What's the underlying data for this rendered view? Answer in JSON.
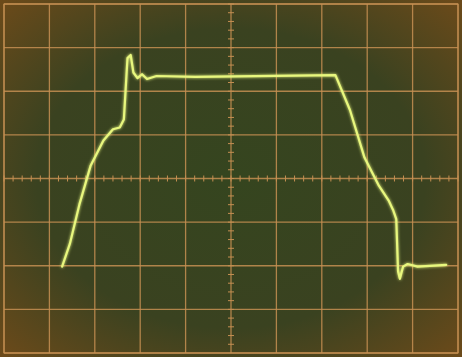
{
  "chart_data": {
    "type": "line",
    "x": [
      1.28,
      1.45,
      1.66,
      1.91,
      2.19,
      2.4,
      2.55,
      2.64,
      2.72,
      2.79,
      2.85,
      2.94,
      3.04,
      3.15,
      3.36,
      4.21,
      7.3,
      7.62,
      7.94,
      8.26,
      8.47,
      8.57,
      8.64,
      8.68,
      8.72,
      8.79,
      8.89,
      9.11,
      9.74
    ],
    "series": [
      {
        "color": "#e8f77e",
        "values": [
          1.98,
          2.5,
          3.4,
          4.3,
          4.87,
          5.13,
          5.17,
          5.35,
          6.76,
          6.83,
          6.43,
          6.3,
          6.39,
          6.28,
          6.35,
          6.33,
          6.37,
          5.57,
          4.48,
          3.83,
          3.5,
          3.28,
          3.07,
          1.87,
          1.7,
          1.98,
          2.04,
          1.98,
          2.02
        ]
      }
    ],
    "xlim": [
      0,
      10
    ],
    "ylim": [
      0,
      8
    ],
    "xticks": [
      0,
      1,
      2,
      3,
      4,
      5,
      6,
      7,
      8,
      9,
      10
    ],
    "yticks": [
      0,
      1,
      2,
      3,
      4,
      5,
      6,
      7,
      8
    ],
    "grid": true,
    "tick_labels": false
  }
}
